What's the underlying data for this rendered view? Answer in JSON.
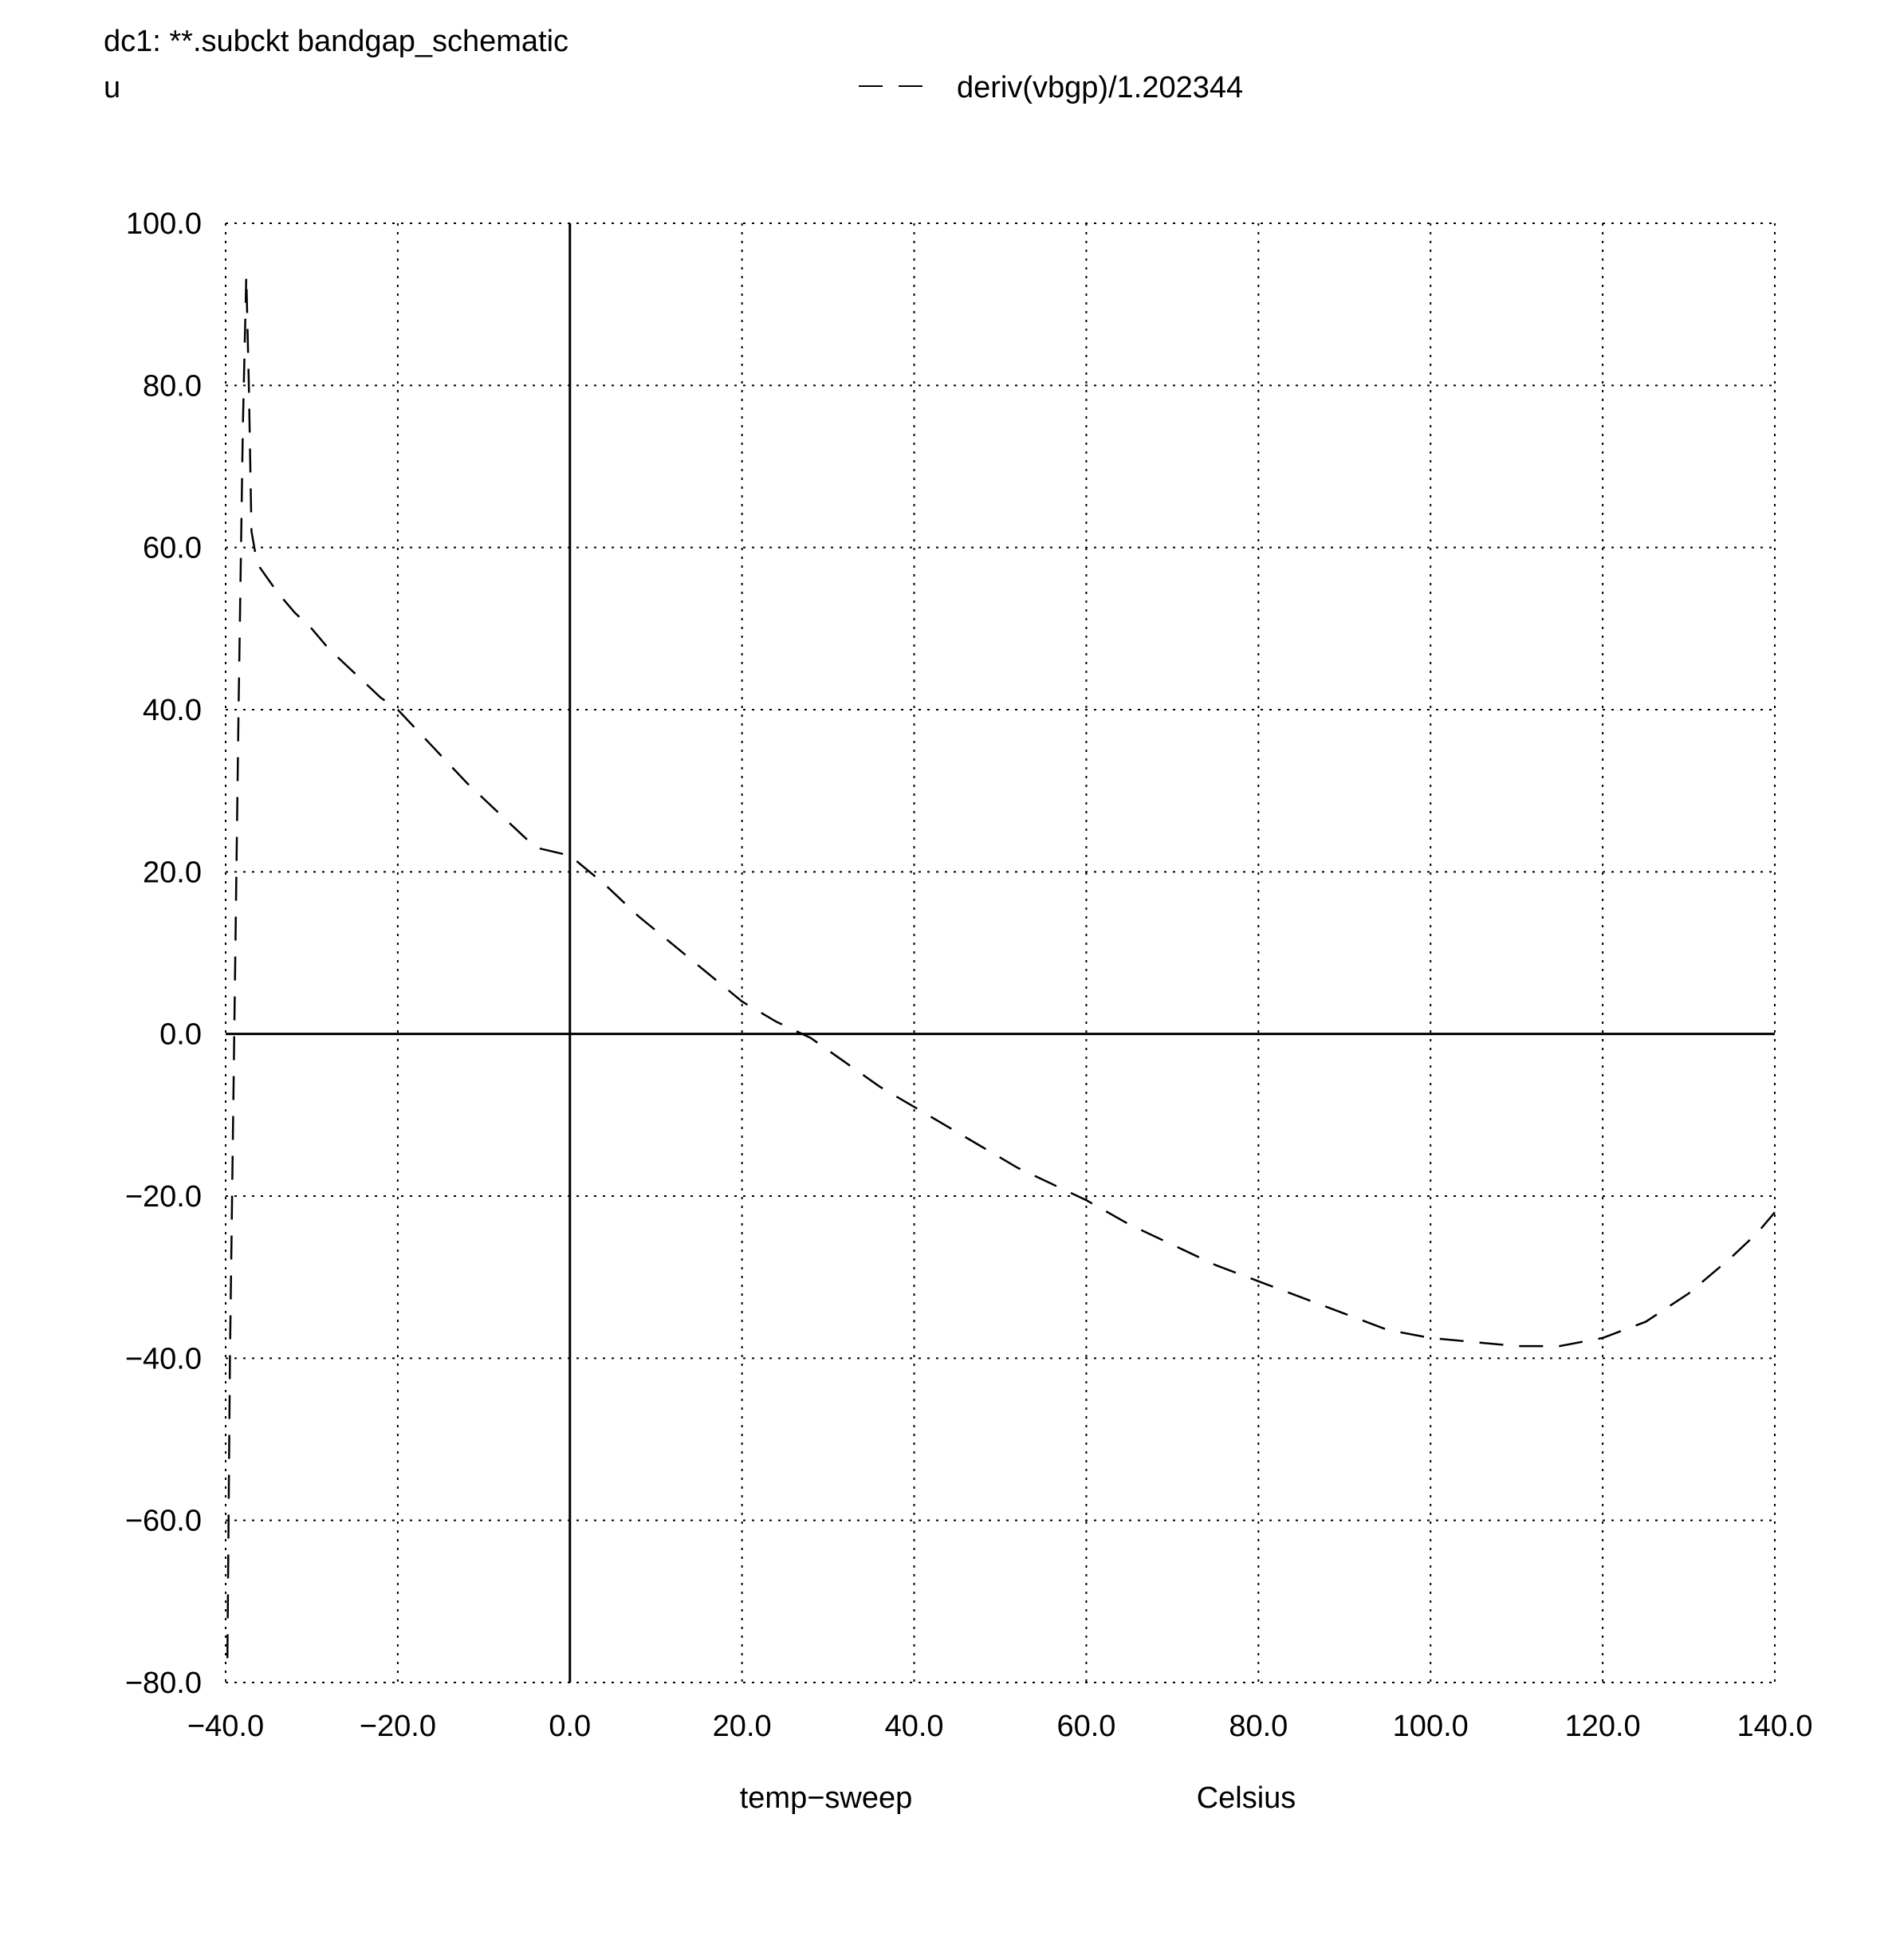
{
  "header": {
    "title": "dc1: **.subckt bandgap_schematic",
    "unit_label": "u"
  },
  "legend": {
    "label": "deriv(vbgp)/1.202344",
    "placement": "top-center"
  },
  "colors": {
    "background": "#ffffff",
    "foreground": "#000000"
  },
  "chart_data": {
    "type": "line",
    "title": "dc1: **.subckt bandgap_schematic",
    "xlabel": "temp−sweep",
    "xunit": "Celsius",
    "ylabel": "u",
    "xlim": [
      -40,
      140
    ],
    "ylim": [
      -80,
      100
    ],
    "grid": true,
    "grid_style": "dotted",
    "legend_placement": "top-center",
    "x_ticks": [
      "−40.0",
      "−20.0",
      "0.0",
      "20.0",
      "40.0",
      "60.0",
      "80.0",
      "100.0",
      "120.0",
      "140.0"
    ],
    "y_ticks": [
      "100.0",
      "80.0",
      "60.0",
      "40.0",
      "20.0",
      "0.0",
      "−20.0",
      "−40.0",
      "−60.0",
      "−80.0"
    ],
    "series": [
      {
        "name": "deriv(vbgp)/1.202344",
        "line_style": "dashed",
        "x": [
          -39.8,
          -39.5,
          -39.0,
          -38.5,
          -38.0,
          -37.6,
          -37.3,
          -37.0,
          -36.5,
          -36.0,
          -34.0,
          -32.0,
          -30.0,
          -28.0,
          -26.0,
          -24.0,
          -22.0,
          -20.0,
          -16.0,
          -12.0,
          -8.0,
          -4.0,
          0.0,
          4.0,
          8.0,
          12.0,
          16.0,
          20.0,
          24.0,
          28.0,
          32.0,
          36.0,
          40.0,
          44.0,
          48.0,
          52.0,
          56.0,
          60.0,
          65.0,
          70.0,
          75.0,
          80.0,
          85.0,
          90.0,
          95.0,
          100.0,
          105.0,
          110.0,
          115.0,
          120.0,
          125.0,
          130.0,
          135.0,
          138.0,
          140.0
        ],
        "y": [
          -77.0,
          -40.0,
          0.0,
          40.0,
          75.0,
          93.5,
          80.0,
          62.0,
          59.0,
          57.5,
          54.5,
          52.0,
          50.0,
          47.5,
          45.5,
          43.5,
          41.5,
          40.0,
          35.5,
          31.0,
          27.0,
          23.0,
          22.0,
          18.5,
          14.5,
          11.0,
          7.5,
          4.0,
          1.5,
          -0.5,
          -3.5,
          -6.5,
          -9.0,
          -11.5,
          -14.0,
          -16.5,
          -18.5,
          -20.5,
          -23.5,
          -26.0,
          -28.5,
          -30.5,
          -32.5,
          -34.5,
          -36.5,
          -37.5,
          -38.0,
          -38.5,
          -38.5,
          -37.5,
          -35.5,
          -32.0,
          -27.5,
          -24.5,
          -22.0
        ]
      }
    ]
  }
}
